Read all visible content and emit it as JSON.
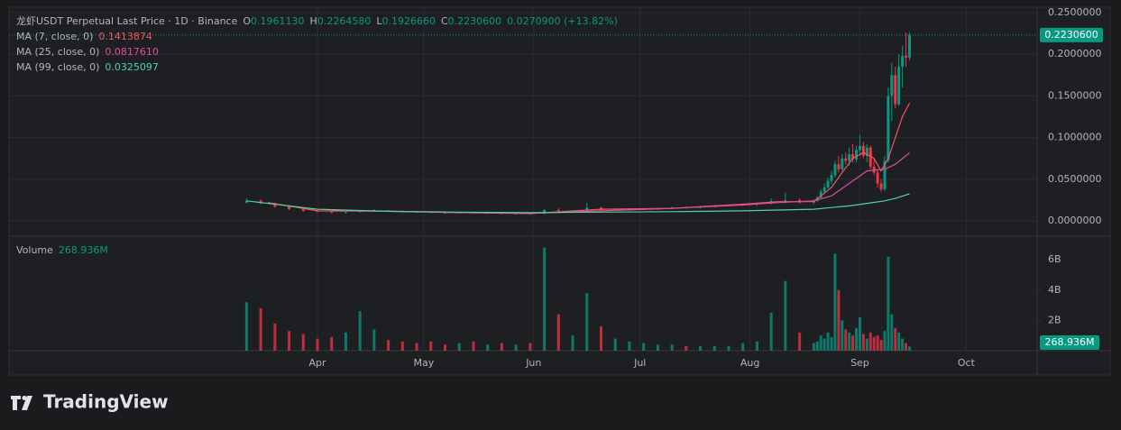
{
  "chart_data": [
    {
      "type": "candlestick",
      "title": "龙虾USDT Perpetual Last Price · 1D · Binance",
      "header_fields": [
        {
          "key": "O",
          "value": "0.1961130"
        },
        {
          "key": "H",
          "value": "0.2264580"
        },
        {
          "key": "L",
          "value": "0.1926660"
        },
        {
          "key": "C",
          "value": "0.2230600"
        }
      ],
      "change": "0.0270900 (+13.82%)",
      "x": [
        -20,
        -16,
        -12,
        -8,
        -4,
        0,
        4,
        8,
        12,
        16,
        20,
        24,
        28,
        32,
        36,
        40,
        44,
        48,
        52,
        56,
        60,
        64,
        68,
        72,
        76,
        80,
        84,
        88,
        92,
        96,
        100,
        104,
        108,
        112,
        116,
        120,
        124,
        128,
        132,
        136,
        140,
        141,
        142,
        143,
        144,
        145,
        146,
        147,
        148,
        149,
        150,
        151,
        152,
        153,
        154,
        155,
        156,
        157,
        158,
        159,
        160,
        161,
        162,
        163,
        164,
        165,
        166,
        167
      ],
      "open": [
        0.022,
        0.024,
        0.021,
        0.017,
        0.014,
        0.012,
        0.011,
        0.01,
        0.0105,
        0.012,
        0.0125,
        0.0115,
        0.011,
        0.0105,
        0.01,
        0.0095,
        0.01,
        0.009,
        0.0095,
        0.0085,
        0.009,
        0.0085,
        0.013,
        0.012,
        0.0125,
        0.016,
        0.013,
        0.0135,
        0.014,
        0.0145,
        0.015,
        0.016,
        0.0155,
        0.017,
        0.018,
        0.019,
        0.02,
        0.021,
        0.024,
        0.025,
        0.022,
        0.024,
        0.028,
        0.035,
        0.04,
        0.048,
        0.055,
        0.068,
        0.062,
        0.075,
        0.072,
        0.08,
        0.074,
        0.085,
        0.09,
        0.078,
        0.088,
        0.065,
        0.058,
        0.045,
        0.038,
        0.072,
        0.15,
        0.175,
        0.14,
        0.185,
        0.198,
        0.196113
      ],
      "high": [
        0.027,
        0.026,
        0.022,
        0.018,
        0.015,
        0.013,
        0.012,
        0.011,
        0.013,
        0.014,
        0.013,
        0.0125,
        0.012,
        0.0115,
        0.011,
        0.0105,
        0.0105,
        0.01,
        0.01,
        0.0095,
        0.01,
        0.014,
        0.015,
        0.013,
        0.022,
        0.017,
        0.014,
        0.015,
        0.015,
        0.016,
        0.017,
        0.017,
        0.018,
        0.019,
        0.02,
        0.021,
        0.022,
        0.027,
        0.034,
        0.027,
        0.026,
        0.03,
        0.038,
        0.045,
        0.052,
        0.06,
        0.072,
        0.078,
        0.08,
        0.082,
        0.088,
        0.092,
        0.09,
        0.103,
        0.095,
        0.092,
        0.09,
        0.075,
        0.062,
        0.05,
        0.078,
        0.16,
        0.19,
        0.185,
        0.2,
        0.21,
        0.226,
        0.226458
      ],
      "low": [
        0.021,
        0.02,
        0.016,
        0.013,
        0.011,
        0.01,
        0.009,
        0.009,
        0.01,
        0.011,
        0.011,
        0.01,
        0.01,
        0.0095,
        0.009,
        0.009,
        0.0085,
        0.0085,
        0.008,
        0.008,
        0.008,
        0.008,
        0.011,
        0.011,
        0.012,
        0.012,
        0.012,
        0.012,
        0.013,
        0.013,
        0.014,
        0.015,
        0.015,
        0.016,
        0.017,
        0.018,
        0.018,
        0.02,
        0.021,
        0.021,
        0.02,
        0.023,
        0.027,
        0.033,
        0.038,
        0.044,
        0.052,
        0.058,
        0.06,
        0.068,
        0.066,
        0.07,
        0.07,
        0.078,
        0.075,
        0.07,
        0.062,
        0.055,
        0.04,
        0.035,
        0.036,
        0.07,
        0.12,
        0.135,
        0.138,
        0.16,
        0.185,
        0.192666
      ],
      "close": [
        0.024,
        0.021,
        0.017,
        0.014,
        0.012,
        0.011,
        0.01,
        0.0105,
        0.012,
        0.0125,
        0.0115,
        0.011,
        0.0105,
        0.01,
        0.0095,
        0.01,
        0.009,
        0.0095,
        0.0085,
        0.009,
        0.0085,
        0.013,
        0.012,
        0.0125,
        0.016,
        0.013,
        0.0135,
        0.014,
        0.0145,
        0.015,
        0.016,
        0.0155,
        0.017,
        0.018,
        0.019,
        0.02,
        0.021,
        0.024,
        0.025,
        0.022,
        0.024,
        0.028,
        0.035,
        0.04,
        0.048,
        0.055,
        0.068,
        0.062,
        0.075,
        0.072,
        0.08,
        0.074,
        0.085,
        0.09,
        0.078,
        0.088,
        0.065,
        0.058,
        0.045,
        0.038,
        0.072,
        0.15,
        0.175,
        0.14,
        0.185,
        0.198,
        0.196,
        0.22306
      ],
      "up_color": "#089981",
      "down_color": "#f23645",
      "xlim": [
        -87,
        203
      ],
      "xticks": [
        {
          "value": 0,
          "label": "Apr"
        },
        {
          "value": 30,
          "label": "May"
        },
        {
          "value": 61,
          "label": "Jun"
        },
        {
          "value": 91,
          "label": "Jul"
        },
        {
          "value": 122,
          "label": "Aug"
        },
        {
          "value": 153,
          "label": "Sep"
        },
        {
          "value": 183,
          "label": "Oct"
        }
      ],
      "ylim": [
        -0.0184,
        0.2565
      ],
      "yticks": [
        {
          "value": 0,
          "label": "0.0000000"
        },
        {
          "value": 0.05,
          "label": "0.0500000"
        },
        {
          "value": 0.1,
          "label": "0.1000000"
        },
        {
          "value": 0.15,
          "label": "0.1500000"
        },
        {
          "value": 0.2,
          "label": "0.2000000"
        },
        {
          "value": 0.25,
          "label": "0.2500000"
        }
      ],
      "grid": true,
      "last_price": {
        "value": 0.22306,
        "label": "0.2230600"
      },
      "lines": [
        {
          "name": "MA (7, close, 0)",
          "value_label": "0.1413874",
          "color": "#f7525f",
          "x": [
            -14,
            0,
            20,
            40,
            60,
            80,
            100,
            120,
            130,
            140,
            145,
            148,
            151,
            154,
            157,
            159,
            161,
            163,
            165,
            167
          ],
          "values": [
            0.022,
            0.012,
            0.0115,
            0.0098,
            0.0088,
            0.014,
            0.015,
            0.02,
            0.023,
            0.023,
            0.04,
            0.058,
            0.075,
            0.082,
            0.075,
            0.06,
            0.075,
            0.1,
            0.125,
            0.1413874
          ]
        },
        {
          "name": "MA (25, close, 0)",
          "value_label": "0.0817610",
          "color": "#e04a9c",
          "x": [
            4,
            20,
            40,
            60,
            80,
            100,
            120,
            130,
            140,
            145,
            150,
            155,
            160,
            163,
            167
          ],
          "values": [
            0.013,
            0.0115,
            0.01,
            0.009,
            0.012,
            0.015,
            0.019,
            0.022,
            0.024,
            0.03,
            0.045,
            0.06,
            0.062,
            0.068,
            0.081761
          ]
        },
        {
          "name": "MA (99, close, 0)",
          "value_label": "0.0325097",
          "color": "#4fd1a5",
          "x": [
            -20,
            0,
            20,
            40,
            60,
            80,
            100,
            120,
            130,
            140,
            145,
            150,
            155,
            160,
            163,
            167
          ],
          "values": [
            0.024,
            0.014,
            0.0115,
            0.0105,
            0.0098,
            0.0105,
            0.011,
            0.012,
            0.013,
            0.014,
            0.016,
            0.018,
            0.021,
            0.024,
            0.027,
            0.0325097
          ]
        }
      ]
    },
    {
      "type": "volume",
      "title": "Volume",
      "values": [
        3.2,
        2.8,
        1.8,
        1.3,
        1.1,
        0.8,
        0.9,
        1.2,
        2.6,
        1.4,
        0.7,
        0.6,
        0.5,
        0.6,
        0.4,
        0.5,
        0.6,
        0.4,
        0.5,
        0.4,
        0.5,
        6.8,
        2.4,
        1.0,
        3.8,
        1.6,
        0.8,
        0.6,
        0.5,
        0.4,
        0.4,
        0.3,
        0.3,
        0.3,
        0.3,
        0.5,
        0.6,
        2.5,
        4.6,
        1.2,
        0.5,
        0.6,
        1.0,
        0.8,
        1.2,
        0.9,
        6.4,
        4.0,
        2.0,
        1.4,
        1.2,
        1.0,
        1.5,
        2.2,
        1.1,
        0.8,
        1.2,
        0.9,
        1.0,
        0.7,
        1.3,
        6.2,
        2.4,
        1.5,
        1.2,
        0.8,
        0.5,
        0.268936
      ],
      "ylim": [
        0,
        7.2
      ],
      "yticks": [
        {
          "value": 2,
          "label": "2B"
        },
        {
          "value": 4,
          "label": "4B"
        },
        {
          "value": 6,
          "label": "6B"
        }
      ],
      "last": {
        "value": 0.268936,
        "label": "268.936M"
      }
    }
  ],
  "brand": "TradingView"
}
